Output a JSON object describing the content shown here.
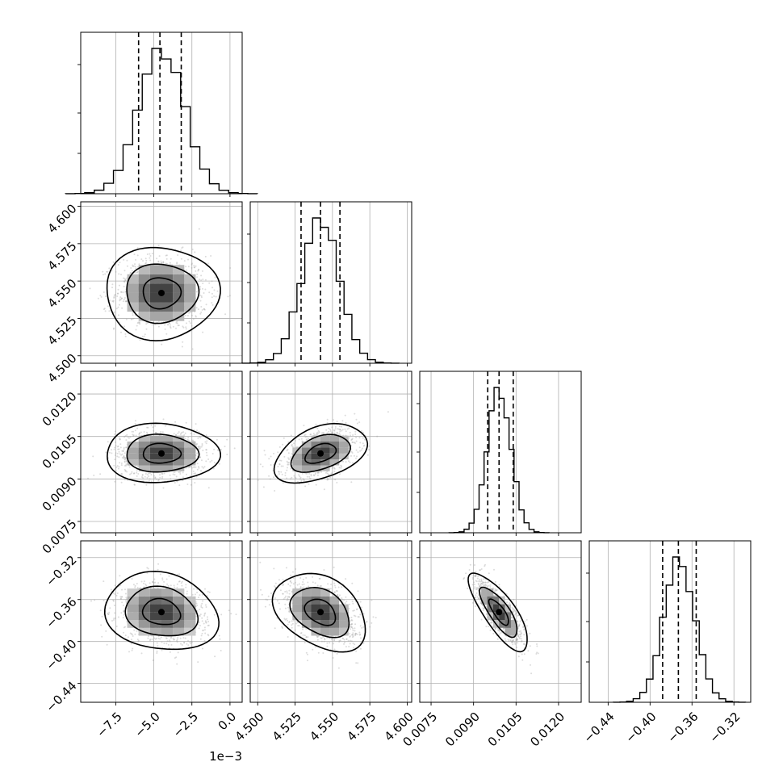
{
  "chart_data": {
    "type": "corner",
    "grid": true,
    "quantiles": [
      0.16,
      0.5,
      0.84
    ],
    "contour_levels": [
      0.39,
      0.86,
      0.99
    ],
    "parameters": [
      {
        "mean": -4.5,
        "std": 1.5,
        "xlim": [
          -9.8,
          0.8
        ],
        "ticks": [
          -7.5,
          -5.0,
          -2.5,
          0.0
        ],
        "ticklabels": [
          "−7.5",
          "−5.0",
          "−2.5",
          "0.0"
        ],
        "quantile_values": [
          -6.0,
          -4.6,
          -3.2
        ],
        "offset_label": "1e−3"
      },
      {
        "mean": 4.542,
        "std": 0.0125,
        "xlim": [
          4.495,
          4.603
        ],
        "ticks": [
          4.5,
          4.525,
          4.55,
          4.575,
          4.6
        ],
        "ticklabels": [
          "4.500",
          "4.525",
          "4.550",
          "4.575",
          "4.600"
        ],
        "quantile_values": [
          4.529,
          4.542,
          4.555
        ],
        "offset_label": ""
      },
      {
        "mean": 0.0099,
        "std": 0.00042,
        "xlim": [
          0.0071,
          0.0128
        ],
        "ticks": [
          0.0075,
          0.009,
          0.0105,
          0.012
        ],
        "ticklabels": [
          "0.0075",
          "0.0090",
          "0.0105",
          "0.0120"
        ],
        "quantile_values": [
          0.0095,
          0.0099,
          0.0104
        ],
        "offset_label": ""
      },
      {
        "mean": -0.372,
        "std": 0.015,
        "xlim": [
          -0.458,
          -0.304
        ],
        "ticks": [
          -0.44,
          -0.4,
          -0.36,
          -0.32
        ],
        "ticklabels": [
          "−0.44",
          "−0.40",
          "−0.36",
          "−0.32"
        ],
        "quantile_values": [
          -0.388,
          -0.373,
          -0.356
        ],
        "offset_label": ""
      }
    ],
    "correlations": [
      {
        "i": 1,
        "j": 0,
        "rho": 0.0
      },
      {
        "i": 2,
        "j": 0,
        "rho": 0.0
      },
      {
        "i": 2,
        "j": 1,
        "rho": 0.42
      },
      {
        "i": 3,
        "j": 0,
        "rho": -0.15
      },
      {
        "i": 3,
        "j": 1,
        "rho": -0.35
      },
      {
        "i": 3,
        "j": 2,
        "rho": -0.78
      }
    ]
  }
}
